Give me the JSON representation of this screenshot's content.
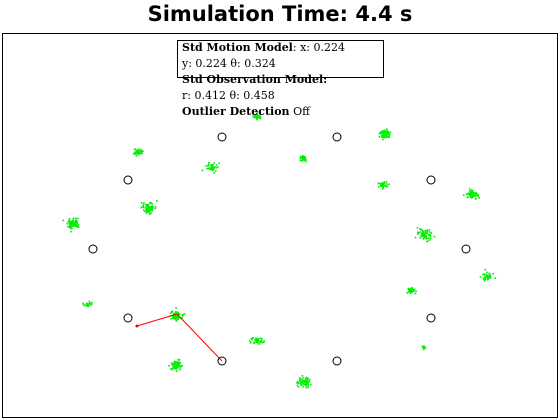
{
  "title": "Simulation Time: 4.4 s",
  "info": {
    "motion_label": "Std Motion Model",
    "motion_values_1": ": x: 0.224",
    "motion_values_2": "y: 0.224  θ: 0.324",
    "obs_label": "Std Observation Model:",
    "obs_values": "r: 0.412  θ: 0.458",
    "outlier_label": "Outlier Detection",
    "outlier_value": "Off"
  },
  "colors": {
    "particles": "#00ee00",
    "measurement": "#ff0000",
    "landmark": "#000000"
  }
}
